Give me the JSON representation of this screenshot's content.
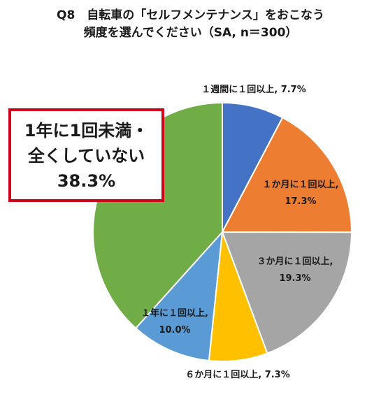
{
  "title": {
    "line1": "Q8　自転車の「セルフメンテナンス」をおこなう",
    "line2": "頻度を選んでください（SA, n＝300）"
  },
  "callout": {
    "line1": "1年に1回未満・",
    "line2": "全くしていない",
    "line3": "38.3%"
  },
  "chart_data": {
    "type": "pie",
    "title": "Q8　自転車の「セルフメンテナンス」をおこなう頻度を選んでください（SA, n＝300）",
    "start_angle_deg": 0,
    "direction": "clockwise",
    "slices": [
      {
        "label": "１週間に１回以上",
        "value": 7.7,
        "display": "7.7%",
        "color": "#4472c4"
      },
      {
        "label": "１か月に１回以上",
        "value": 17.3,
        "display": "17.3%",
        "color": "#ed7d31"
      },
      {
        "label": "３か月に１回以上",
        "value": 19.3,
        "display": "19.3%",
        "color": "#a5a5a5"
      },
      {
        "label": "６か月に１回以上",
        "value": 7.3,
        "display": "7.3%",
        "color": "#ffc000"
      },
      {
        "label": "１年に１回以上",
        "value": 10.0,
        "display": "10.0%",
        "color": "#5b9bd5"
      },
      {
        "label": "1年に1回未満・全くしていない",
        "value": 38.3,
        "display": "38.3%",
        "color": "#70ad47"
      }
    ]
  }
}
